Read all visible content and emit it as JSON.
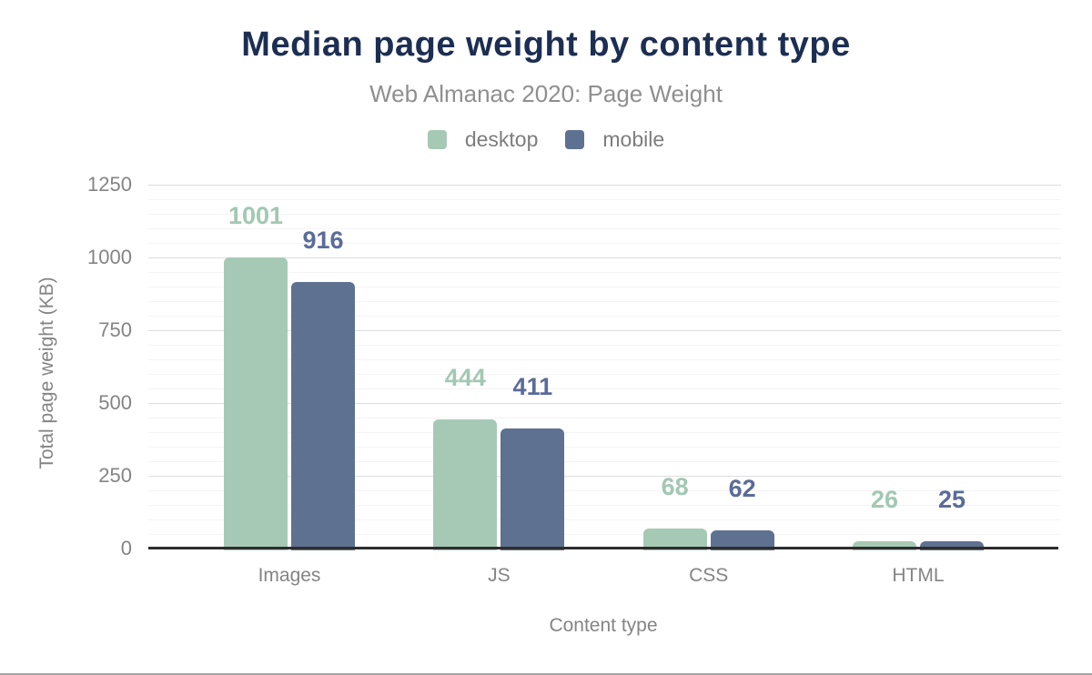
{
  "chart_data": {
    "type": "bar",
    "title": "Median page weight by content type",
    "subtitle": "Web Almanac 2020: Page Weight",
    "xlabel": "Content type",
    "ylabel": "Total page weight (KB)",
    "categories": [
      "Images",
      "JS",
      "CSS",
      "HTML"
    ],
    "series": [
      {
        "name": "desktop",
        "color": "#a6c9b5",
        "label_color": "#a2c8b2",
        "values": [
          1001,
          444,
          68,
          26
        ]
      },
      {
        "name": "mobile",
        "color": "#5f7191",
        "label_color": "#5a6c98",
        "values": [
          916,
          411,
          62,
          25
        ]
      }
    ],
    "ylim": [
      0,
      1250
    ],
    "yticks": [
      0,
      250,
      500,
      750,
      1000,
      1250
    ],
    "minor_grid_step": 50,
    "major_grid_step": 250,
    "grid": "horizontal",
    "legend_position": "top-center",
    "data_labels": "above-bars"
  },
  "colors": {
    "title": "#1c2e52",
    "subtitle": "#8f8f8f",
    "axis_text": "#848484",
    "legend_text": "#7d7d7d",
    "axis_line": "#2d2d2d",
    "grid_major": "#dedede",
    "grid_minor": "#f4f4f4",
    "figure_border": "#a6a6a6",
    "background": "#ffffff"
  }
}
